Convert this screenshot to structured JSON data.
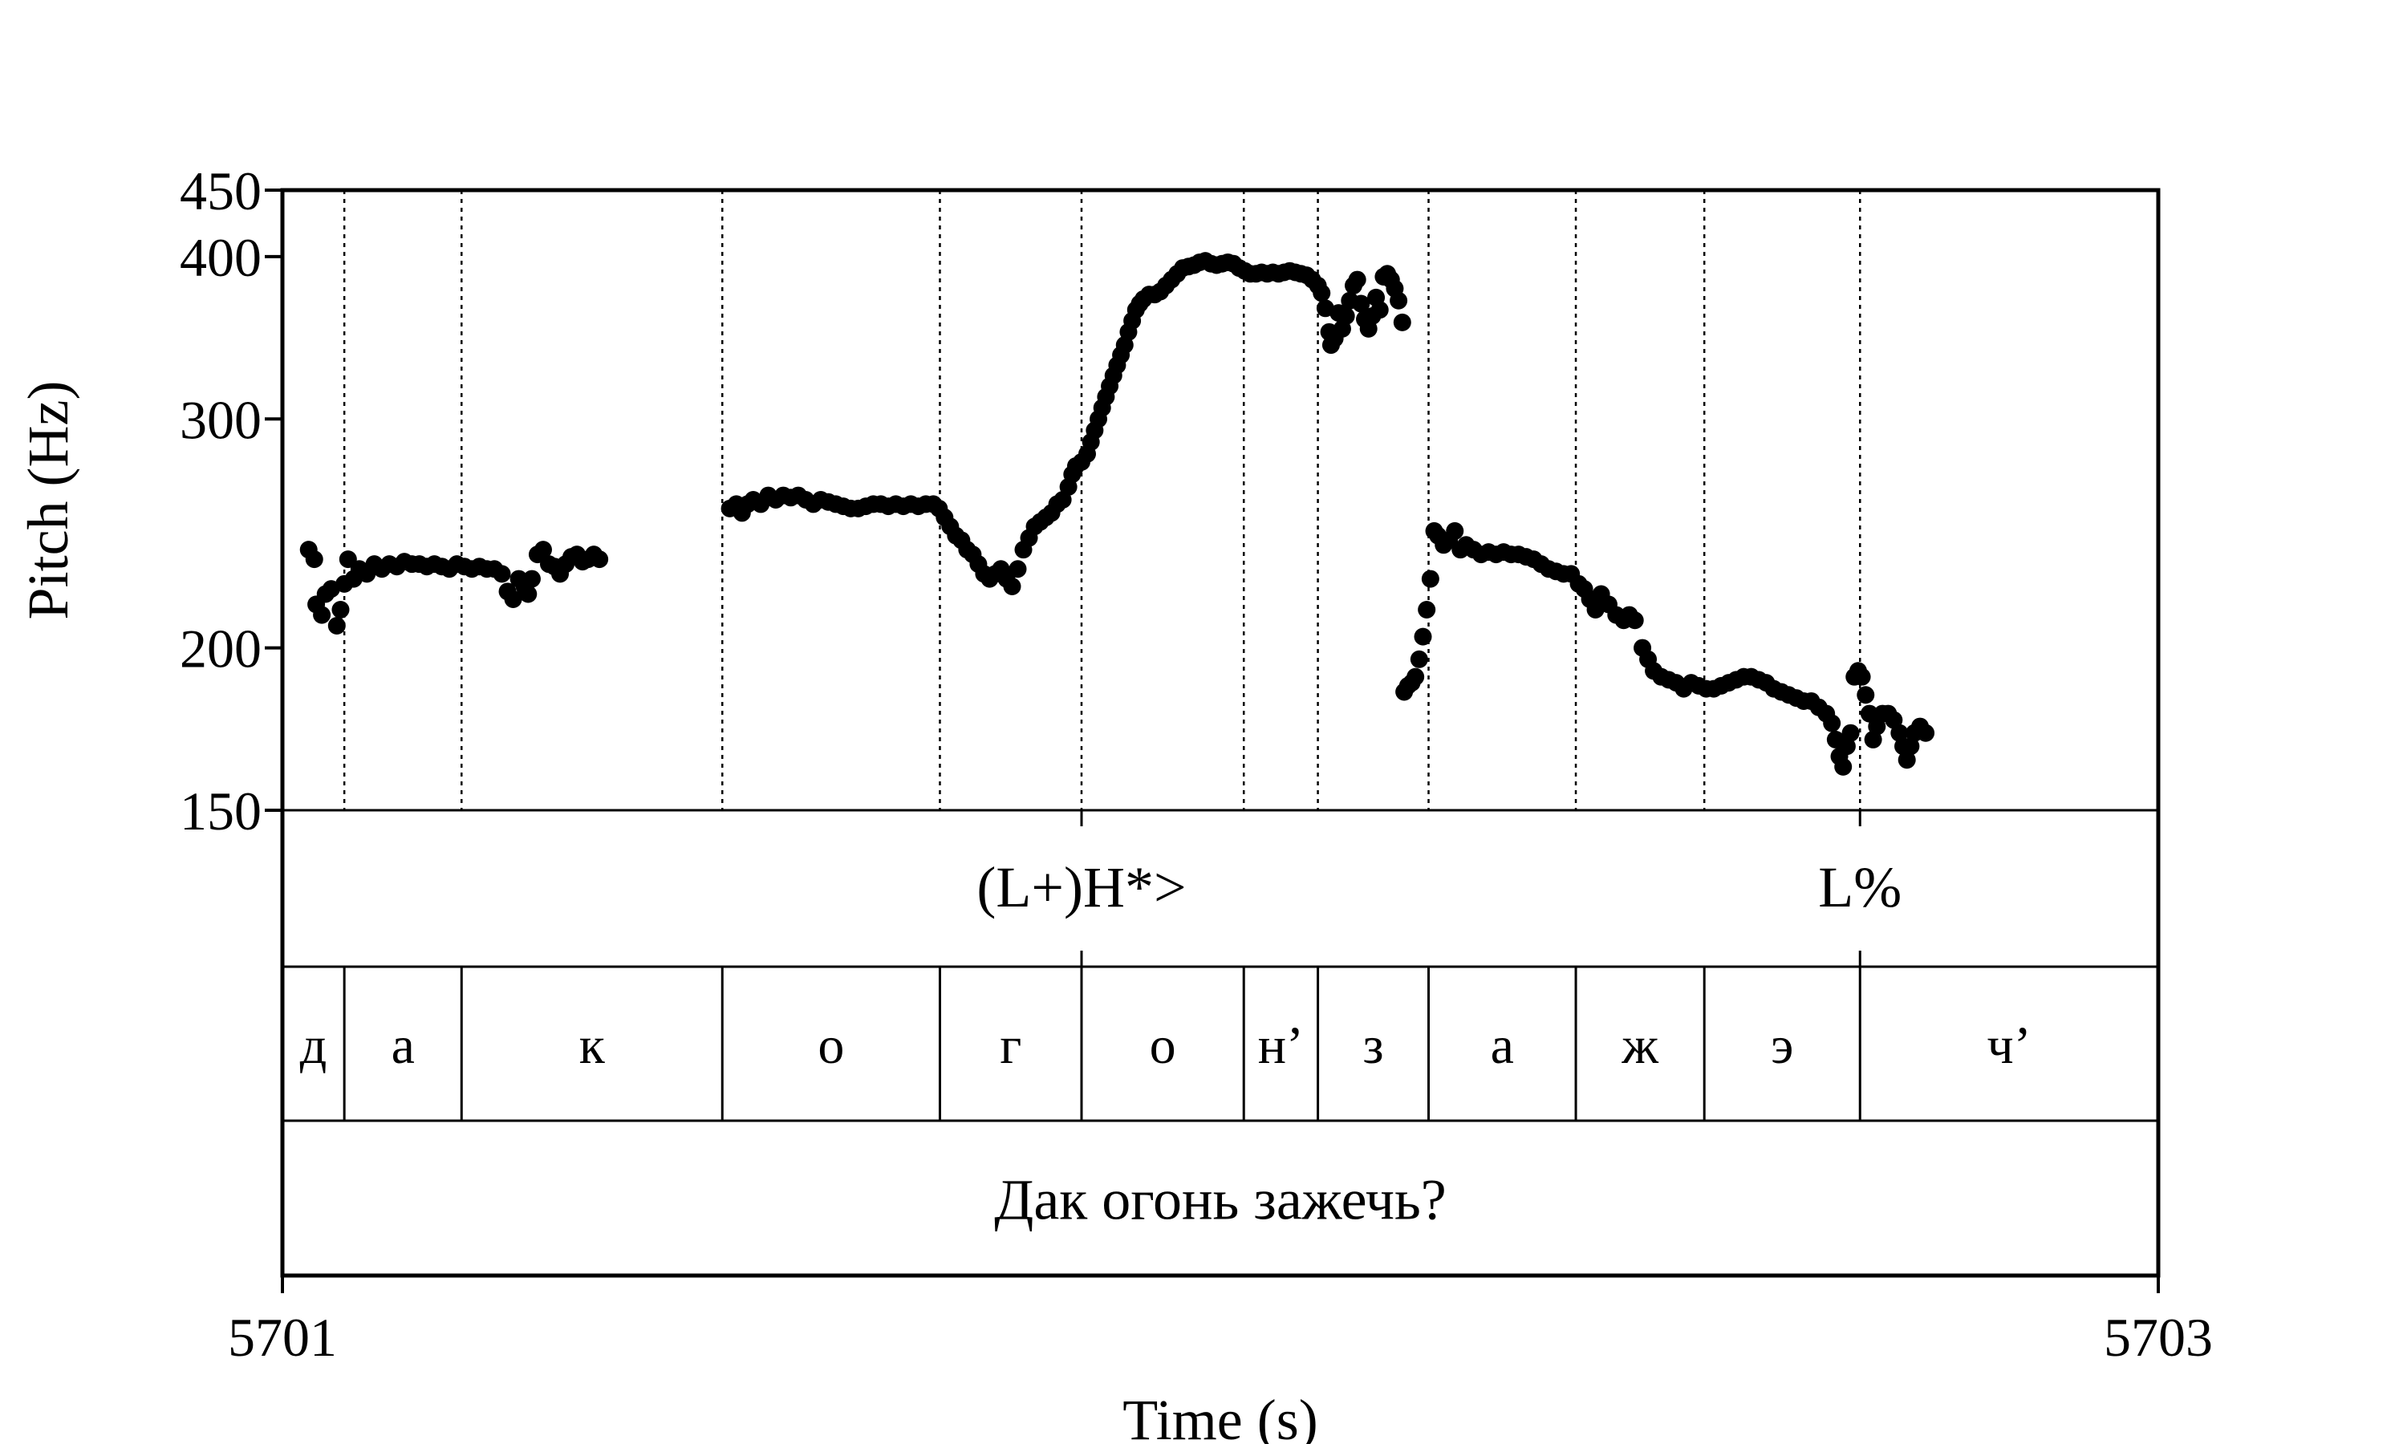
{
  "chart_data": {
    "type": "scatter",
    "xlabel": "Time (s)",
    "ylabel": "Pitch (Hz)",
    "xlim": [
      5701,
      5703
    ],
    "ylim": [
      150,
      450
    ],
    "xticks": [
      "5701",
      "5703"
    ],
    "yticks": [
      {
        "value": 150,
        "label": "150"
      },
      {
        "value": 200,
        "label": "200"
      },
      {
        "value": 300,
        "label": "300"
      },
      {
        "value": 400,
        "label": "400"
      },
      {
        "value": 450,
        "label": "450"
      }
    ],
    "grid": false,
    "marker_color": "#000000",
    "boundaries": [
      5701.066,
      5701.191,
      5701.469,
      5701.701,
      5701.852,
      5702.025,
      5702.104,
      5702.222,
      5702.379,
      5702.516,
      5702.682
    ],
    "tones": [
      {
        "label": "(L+)H*>",
        "time": 5701.852
      },
      {
        "label": "L%",
        "time": 5702.682
      }
    ],
    "segments": [
      {
        "label": "д",
        "start": 5701.0,
        "end": 5701.066
      },
      {
        "label": "а",
        "start": 5701.066,
        "end": 5701.191
      },
      {
        "label": "к",
        "start": 5701.191,
        "end": 5701.469
      },
      {
        "label": "о",
        "start": 5701.469,
        "end": 5701.701
      },
      {
        "label": "г",
        "start": 5701.701,
        "end": 5701.852
      },
      {
        "label": "о",
        "start": 5701.852,
        "end": 5702.025
      },
      {
        "label": "н’",
        "start": 5702.025,
        "end": 5702.104
      },
      {
        "label": "з",
        "start": 5702.104,
        "end": 5702.222
      },
      {
        "label": "а",
        "start": 5702.222,
        "end": 5702.379
      },
      {
        "label": "ж",
        "start": 5702.379,
        "end": 5702.516
      },
      {
        "label": "э",
        "start": 5702.516,
        "end": 5702.682
      },
      {
        "label": "ч’",
        "start": 5702.682,
        "end": 5703.0
      }
    ],
    "sentence": "Дак огонь зажечь?",
    "points": [
      [
        5701.028,
        238
      ],
      [
        5701.034,
        234
      ],
      [
        5701.036,
        216
      ],
      [
        5701.042,
        212
      ],
      [
        5701.046,
        220
      ],
      [
        5701.052,
        222
      ],
      [
        5701.058,
        208
      ],
      [
        5701.062,
        214
      ],
      [
        5701.066,
        224
      ],
      [
        5701.07,
        234
      ],
      [
        5701.076,
        226
      ],
      [
        5701.082,
        230
      ],
      [
        5701.09,
        228
      ],
      [
        5701.098,
        232
      ],
      [
        5701.106,
        230
      ],
      [
        5701.114,
        232
      ],
      [
        5701.122,
        231
      ],
      [
        5701.13,
        233
      ],
      [
        5701.138,
        232
      ],
      [
        5701.146,
        232
      ],
      [
        5701.154,
        231
      ],
      [
        5701.162,
        232
      ],
      [
        5701.17,
        231
      ],
      [
        5701.178,
        230
      ],
      [
        5701.186,
        232
      ],
      [
        5701.194,
        231
      ],
      [
        5701.202,
        230
      ],
      [
        5701.21,
        231
      ],
      [
        5701.218,
        230
      ],
      [
        5701.226,
        230
      ],
      [
        5701.234,
        228
      ],
      [
        5701.24,
        221
      ],
      [
        5701.246,
        218
      ],
      [
        5701.252,
        226
      ],
      [
        5701.258,
        223
      ],
      [
        5701.262,
        220
      ],
      [
        5701.266,
        226
      ],
      [
        5701.272,
        236
      ],
      [
        5701.278,
        238
      ],
      [
        5701.284,
        232
      ],
      [
        5701.29,
        231
      ],
      [
        5701.296,
        228
      ],
      [
        5701.302,
        232
      ],
      [
        5701.308,
        235
      ],
      [
        5701.314,
        236
      ],
      [
        5701.32,
        233
      ],
      [
        5701.326,
        234
      ],
      [
        5701.332,
        236
      ],
      [
        5701.338,
        234
      ],
      [
        5701.477,
        256
      ],
      [
        5701.484,
        258
      ],
      [
        5701.49,
        254
      ],
      [
        5701.496,
        258
      ],
      [
        5701.502,
        260
      ],
      [
        5701.51,
        258
      ],
      [
        5701.518,
        262
      ],
      [
        5701.526,
        260
      ],
      [
        5701.534,
        262
      ],
      [
        5701.542,
        261
      ],
      [
        5701.55,
        262
      ],
      [
        5701.558,
        260
      ],
      [
        5701.566,
        258
      ],
      [
        5701.574,
        260
      ],
      [
        5701.582,
        259
      ],
      [
        5701.59,
        258
      ],
      [
        5701.598,
        257
      ],
      [
        5701.606,
        256
      ],
      [
        5701.614,
        256
      ],
      [
        5701.622,
        257
      ],
      [
        5701.63,
        258
      ],
      [
        5701.638,
        258
      ],
      [
        5701.646,
        257
      ],
      [
        5701.654,
        258
      ],
      [
        5701.662,
        257
      ],
      [
        5701.67,
        258
      ],
      [
        5701.678,
        257
      ],
      [
        5701.686,
        258
      ],
      [
        5701.694,
        258
      ],
      [
        5701.7,
        256
      ],
      [
        5701.706,
        252
      ],
      [
        5701.712,
        248
      ],
      [
        5701.718,
        244
      ],
      [
        5701.724,
        242
      ],
      [
        5701.73,
        238
      ],
      [
        5701.736,
        236
      ],
      [
        5701.742,
        232
      ],
      [
        5701.748,
        228
      ],
      [
        5701.754,
        226
      ],
      [
        5701.76,
        228
      ],
      [
        5701.766,
        230
      ],
      [
        5701.772,
        226
      ],
      [
        5701.778,
        223
      ],
      [
        5701.784,
        230
      ],
      [
        5701.79,
        238
      ],
      [
        5701.796,
        243
      ],
      [
        5701.802,
        248
      ],
      [
        5701.808,
        250
      ],
      [
        5701.814,
        252
      ],
      [
        5701.82,
        254
      ],
      [
        5701.826,
        258
      ],
      [
        5701.832,
        260
      ],
      [
        5701.838,
        266
      ],
      [
        5701.842,
        272
      ],
      [
        5701.846,
        276
      ],
      [
        5701.852,
        278
      ],
      [
        5701.858,
        282
      ],
      [
        5701.862,
        288
      ],
      [
        5701.866,
        294
      ],
      [
        5701.87,
        300
      ],
      [
        5701.874,
        306
      ],
      [
        5701.878,
        312
      ],
      [
        5701.882,
        318
      ],
      [
        5701.886,
        324
      ],
      [
        5701.89,
        330
      ],
      [
        5701.894,
        336
      ],
      [
        5701.898,
        342
      ],
      [
        5701.902,
        350
      ],
      [
        5701.906,
        357
      ],
      [
        5701.91,
        364
      ],
      [
        5701.914,
        368
      ],
      [
        5701.918,
        371
      ],
      [
        5701.924,
        374
      ],
      [
        5701.93,
        374
      ],
      [
        5701.936,
        376
      ],
      [
        5701.942,
        380
      ],
      [
        5701.948,
        384
      ],
      [
        5701.954,
        388
      ],
      [
        5701.96,
        392
      ],
      [
        5701.966,
        393
      ],
      [
        5701.972,
        394
      ],
      [
        5701.978,
        396
      ],
      [
        5701.984,
        397
      ],
      [
        5701.99,
        395
      ],
      [
        5701.996,
        394
      ],
      [
        5702.002,
        395
      ],
      [
        5702.008,
        396
      ],
      [
        5702.014,
        395
      ],
      [
        5702.02,
        392
      ],
      [
        5702.026,
        390
      ],
      [
        5702.032,
        388
      ],
      [
        5702.038,
        388
      ],
      [
        5702.044,
        389
      ],
      [
        5702.05,
        388
      ],
      [
        5702.056,
        389
      ],
      [
        5702.062,
        388
      ],
      [
        5702.068,
        389
      ],
      [
        5702.074,
        390
      ],
      [
        5702.08,
        389
      ],
      [
        5702.086,
        388
      ],
      [
        5702.092,
        387
      ],
      [
        5702.098,
        384
      ],
      [
        5702.104,
        380
      ],
      [
        5702.108,
        375
      ],
      [
        5702.112,
        365
      ],
      [
        5702.116,
        350
      ],
      [
        5702.118,
        342
      ],
      [
        5702.122,
        346
      ],
      [
        5702.126,
        362
      ],
      [
        5702.13,
        352
      ],
      [
        5702.134,
        360
      ],
      [
        5702.138,
        370
      ],
      [
        5702.142,
        380
      ],
      [
        5702.146,
        384
      ],
      [
        5702.15,
        368
      ],
      [
        5702.154,
        358
      ],
      [
        5702.158,
        352
      ],
      [
        5702.162,
        360
      ],
      [
        5702.166,
        372
      ],
      [
        5702.17,
        364
      ],
      [
        5702.174,
        386
      ],
      [
        5702.178,
        388
      ],
      [
        5702.182,
        384
      ],
      [
        5702.186,
        378
      ],
      [
        5702.19,
        370
      ],
      [
        5702.194,
        356
      ],
      [
        5702.196,
        185
      ],
      [
        5702.2,
        187
      ],
      [
        5702.204,
        188
      ],
      [
        5702.208,
        190
      ],
      [
        5702.212,
        196
      ],
      [
        5702.216,
        204
      ],
      [
        5702.22,
        214
      ],
      [
        5702.224,
        226
      ],
      [
        5702.228,
        246
      ],
      [
        5702.232,
        244
      ],
      [
        5702.238,
        240
      ],
      [
        5702.244,
        242
      ],
      [
        5702.25,
        246
      ],
      [
        5702.256,
        238
      ],
      [
        5702.262,
        240
      ],
      [
        5702.27,
        238
      ],
      [
        5702.278,
        236
      ],
      [
        5702.286,
        237
      ],
      [
        5702.294,
        236
      ],
      [
        5702.302,
        237
      ],
      [
        5702.31,
        236
      ],
      [
        5702.318,
        236
      ],
      [
        5702.326,
        235
      ],
      [
        5702.334,
        234
      ],
      [
        5702.342,
        232
      ],
      [
        5702.35,
        230
      ],
      [
        5702.358,
        229
      ],
      [
        5702.366,
        228
      ],
      [
        5702.374,
        228
      ],
      [
        5702.382,
        224
      ],
      [
        5702.388,
        222
      ],
      [
        5702.394,
        218
      ],
      [
        5702.4,
        214
      ],
      [
        5702.406,
        220
      ],
      [
        5702.414,
        216
      ],
      [
        5702.422,
        212
      ],
      [
        5702.43,
        210
      ],
      [
        5702.436,
        212
      ],
      [
        5702.442,
        210
      ],
      [
        5702.45,
        200
      ],
      [
        5702.456,
        196
      ],
      [
        5702.462,
        192
      ],
      [
        5702.47,
        190
      ],
      [
        5702.478,
        189
      ],
      [
        5702.486,
        188
      ],
      [
        5702.494,
        186
      ],
      [
        5702.502,
        188
      ],
      [
        5702.51,
        187
      ],
      [
        5702.518,
        186
      ],
      [
        5702.526,
        186
      ],
      [
        5702.534,
        187
      ],
      [
        5702.542,
        188
      ],
      [
        5702.55,
        189
      ],
      [
        5702.558,
        190
      ],
      [
        5702.566,
        190
      ],
      [
        5702.574,
        189
      ],
      [
        5702.582,
        188
      ],
      [
        5702.59,
        186
      ],
      [
        5702.598,
        185
      ],
      [
        5702.606,
        184
      ],
      [
        5702.614,
        183
      ],
      [
        5702.622,
        182
      ],
      [
        5702.63,
        182
      ],
      [
        5702.638,
        180
      ],
      [
        5702.646,
        178
      ],
      [
        5702.652,
        175
      ],
      [
        5702.656,
        170
      ],
      [
        5702.66,
        165
      ],
      [
        5702.664,
        162
      ],
      [
        5702.668,
        168
      ],
      [
        5702.672,
        172
      ],
      [
        5702.676,
        190
      ],
      [
        5702.68,
        192
      ],
      [
        5702.684,
        190
      ],
      [
        5702.688,
        184
      ],
      [
        5702.692,
        178
      ],
      [
        5702.696,
        170
      ],
      [
        5702.7,
        174
      ],
      [
        5702.706,
        178
      ],
      [
        5702.712,
        178
      ],
      [
        5702.718,
        176
      ],
      [
        5702.724,
        172
      ],
      [
        5702.728,
        168
      ],
      [
        5702.732,
        164
      ],
      [
        5702.736,
        168
      ],
      [
        5702.74,
        172
      ],
      [
        5702.746,
        174
      ],
      [
        5702.752,
        172
      ]
    ]
  }
}
